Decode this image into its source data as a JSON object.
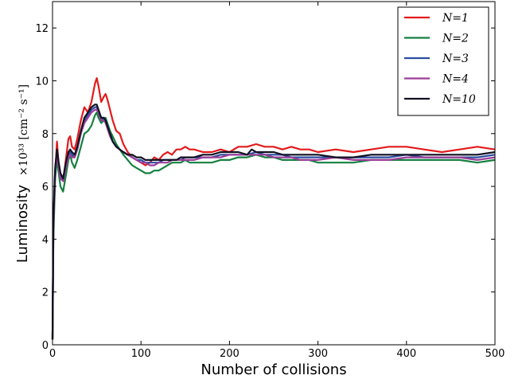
{
  "chart_data": {
    "type": "line",
    "title": "",
    "xlabel": "Number of collisions",
    "ylabel_main": "Luminosity",
    "ylabel_unit": "×10³³ [cm⁻² s⁻¹]",
    "xlim": [
      0,
      500
    ],
    "ylim": [
      0,
      13
    ],
    "xticks": [
      0,
      100,
      200,
      300,
      400,
      500
    ],
    "yticks": [
      0,
      2,
      4,
      6,
      8,
      10,
      12
    ],
    "grid": false,
    "legend_position": "top-right",
    "series": [
      {
        "name": "N=1",
        "color": "#e31a1c",
        "x": [
          0,
          1,
          3,
          5,
          7,
          9,
          12,
          15,
          18,
          20,
          22,
          25,
          28,
          32,
          36,
          40,
          44,
          48,
          50,
          52,
          55,
          58,
          60,
          62,
          65,
          68,
          72,
          76,
          80,
          85,
          90,
          95,
          100,
          105,
          110,
          115,
          120,
          125,
          130,
          135,
          140,
          145,
          150,
          155,
          160,
          170,
          180,
          190,
          200,
          210,
          220,
          230,
          240,
          250,
          260,
          270,
          280,
          290,
          300,
          320,
          340,
          360,
          380,
          400,
          420,
          440,
          460,
          480,
          500
        ],
        "y": [
          0.2,
          4.5,
          6.5,
          7.7,
          6.8,
          6.3,
          6.2,
          7.0,
          7.8,
          7.9,
          7.5,
          7.4,
          7.8,
          8.5,
          9.0,
          8.8,
          9.2,
          9.9,
          10.1,
          9.8,
          9.2,
          9.4,
          9.5,
          9.3,
          8.9,
          8.5,
          8.1,
          8.0,
          7.6,
          7.3,
          7.1,
          7.0,
          6.9,
          6.8,
          6.9,
          7.1,
          7.0,
          7.2,
          7.3,
          7.2,
          7.4,
          7.4,
          7.5,
          7.4,
          7.4,
          7.3,
          7.3,
          7.4,
          7.3,
          7.5,
          7.5,
          7.6,
          7.5,
          7.5,
          7.4,
          7.5,
          7.4,
          7.4,
          7.3,
          7.4,
          7.3,
          7.4,
          7.5,
          7.5,
          7.4,
          7.3,
          7.4,
          7.5,
          7.4
        ]
      },
      {
        "name": "N=2",
        "color": "#168040",
        "x": [
          0,
          1,
          3,
          5,
          7,
          9,
          12,
          15,
          18,
          20,
          22,
          25,
          28,
          32,
          36,
          40,
          44,
          48,
          50,
          52,
          55,
          58,
          60,
          62,
          65,
          68,
          72,
          76,
          80,
          85,
          90,
          95,
          100,
          105,
          110,
          115,
          120,
          125,
          130,
          135,
          140,
          145,
          150,
          155,
          160,
          170,
          180,
          190,
          200,
          210,
          220,
          230,
          240,
          250,
          260,
          270,
          280,
          290,
          300,
          320,
          340,
          360,
          380,
          400,
          420,
          440,
          460,
          480,
          500
        ],
        "y": [
          0.2,
          4.0,
          6.3,
          7.0,
          6.5,
          6.0,
          5.8,
          6.4,
          7.0,
          7.2,
          6.9,
          6.7,
          7.0,
          7.5,
          8.0,
          8.1,
          8.3,
          8.7,
          8.8,
          8.6,
          8.4,
          8.5,
          8.6,
          8.4,
          8.1,
          7.9,
          7.6,
          7.4,
          7.2,
          7.0,
          6.8,
          6.7,
          6.6,
          6.5,
          6.5,
          6.6,
          6.6,
          6.7,
          6.8,
          6.9,
          6.9,
          6.9,
          7.0,
          6.9,
          6.9,
          6.9,
          6.9,
          7.0,
          7.0,
          7.1,
          7.1,
          7.2,
          7.1,
          7.1,
          7.0,
          7.0,
          7.0,
          7.0,
          6.9,
          6.9,
          6.9,
          7.0,
          7.0,
          7.0,
          7.0,
          7.0,
          7.0,
          6.9,
          7.0
        ]
      },
      {
        "name": "N=3",
        "color": "#2b4ea0",
        "x": [
          0,
          1,
          3,
          5,
          7,
          9,
          12,
          15,
          18,
          20,
          22,
          25,
          28,
          32,
          36,
          40,
          44,
          48,
          50,
          52,
          55,
          58,
          60,
          62,
          65,
          68,
          72,
          76,
          80,
          85,
          90,
          95,
          100,
          105,
          110,
          115,
          120,
          125,
          130,
          135,
          140,
          145,
          150,
          155,
          160,
          170,
          180,
          190,
          200,
          210,
          220,
          230,
          240,
          250,
          260,
          270,
          280,
          290,
          300,
          320,
          340,
          360,
          380,
          400,
          420,
          440,
          460,
          480,
          500
        ],
        "y": [
          0.2,
          4.6,
          6.6,
          7.3,
          6.8,
          6.4,
          6.2,
          6.8,
          7.2,
          7.3,
          7.2,
          7.1,
          7.4,
          8.0,
          8.5,
          8.7,
          8.9,
          9.0,
          9.0,
          8.8,
          8.5,
          8.6,
          8.5,
          8.3,
          8.0,
          7.7,
          7.5,
          7.4,
          7.3,
          7.2,
          7.1,
          7.0,
          7.0,
          6.9,
          6.9,
          6.9,
          6.9,
          7.0,
          7.0,
          7.0,
          7.0,
          7.0,
          7.1,
          7.1,
          7.1,
          7.1,
          7.1,
          7.2,
          7.2,
          7.2,
          7.2,
          7.3,
          7.2,
          7.2,
          7.2,
          7.1,
          7.1,
          7.1,
          7.1,
          7.1,
          7.1,
          7.1,
          7.1,
          7.2,
          7.1,
          7.1,
          7.1,
          7.1,
          7.2
        ]
      },
      {
        "name": "N=4",
        "color": "#9b3d98",
        "x": [
          0,
          1,
          3,
          5,
          7,
          9,
          12,
          15,
          18,
          20,
          22,
          25,
          28,
          32,
          36,
          40,
          44,
          48,
          50,
          52,
          55,
          58,
          60,
          62,
          65,
          68,
          72,
          76,
          80,
          85,
          90,
          95,
          100,
          105,
          110,
          115,
          120,
          125,
          130,
          135,
          140,
          145,
          150,
          155,
          160,
          170,
          180,
          190,
          200,
          210,
          220,
          230,
          240,
          250,
          260,
          270,
          280,
          290,
          300,
          320,
          340,
          360,
          380,
          400,
          420,
          440,
          460,
          480,
          500
        ],
        "y": [
          0.2,
          4.5,
          6.6,
          7.2,
          6.7,
          6.3,
          6.2,
          6.7,
          7.1,
          7.2,
          7.1,
          7.1,
          7.4,
          8.0,
          8.4,
          8.6,
          8.8,
          8.9,
          8.9,
          8.8,
          8.5,
          8.5,
          8.4,
          8.2,
          7.9,
          7.7,
          7.5,
          7.4,
          7.3,
          7.2,
          7.1,
          7.0,
          6.9,
          6.9,
          6.8,
          6.8,
          6.9,
          6.9,
          6.9,
          7.0,
          7.0,
          7.0,
          7.0,
          7.0,
          7.0,
          7.1,
          7.1,
          7.1,
          7.2,
          7.2,
          7.2,
          7.2,
          7.2,
          7.1,
          7.1,
          7.1,
          7.0,
          7.0,
          7.0,
          7.1,
          7.0,
          7.0,
          7.0,
          7.1,
          7.1,
          7.1,
          7.1,
          7.0,
          7.1
        ]
      },
      {
        "name": "N=10",
        "color": "#111122",
        "x": [
          0,
          1,
          3,
          5,
          7,
          9,
          12,
          15,
          18,
          20,
          22,
          25,
          28,
          32,
          36,
          40,
          44,
          48,
          50,
          52,
          55,
          58,
          60,
          62,
          65,
          68,
          72,
          76,
          80,
          85,
          90,
          95,
          100,
          105,
          110,
          115,
          120,
          125,
          130,
          135,
          140,
          145,
          150,
          155,
          160,
          170,
          180,
          190,
          200,
          210,
          220,
          225,
          230,
          240,
          250,
          260,
          270,
          280,
          290,
          300,
          320,
          340,
          360,
          380,
          400,
          420,
          440,
          460,
          480,
          500
        ],
        "y": [
          0.2,
          4.8,
          6.7,
          7.4,
          6.9,
          6.5,
          6.3,
          6.9,
          7.3,
          7.4,
          7.3,
          7.2,
          7.5,
          8.1,
          8.6,
          8.8,
          9.0,
          9.1,
          9.1,
          8.9,
          8.6,
          8.6,
          8.5,
          8.3,
          8.0,
          7.7,
          7.5,
          7.4,
          7.3,
          7.2,
          7.2,
          7.1,
          7.1,
          7.0,
          7.0,
          7.0,
          7.0,
          7.0,
          7.0,
          7.0,
          7.0,
          7.1,
          7.1,
          7.1,
          7.1,
          7.2,
          7.2,
          7.3,
          7.3,
          7.3,
          7.2,
          7.4,
          7.3,
          7.3,
          7.3,
          7.2,
          7.2,
          7.2,
          7.2,
          7.2,
          7.1,
          7.1,
          7.2,
          7.2,
          7.2,
          7.2,
          7.2,
          7.2,
          7.2,
          7.3
        ]
      }
    ]
  }
}
